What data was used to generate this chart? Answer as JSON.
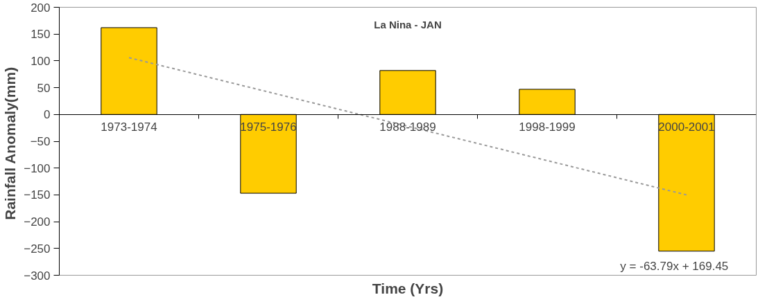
{
  "chart_data": {
    "type": "bar",
    "title": "La Nina - JAN",
    "xlabel": "Time (Yrs)",
    "ylabel": "Rainfall  Anomaly(mm)",
    "categories": [
      "1973-1974",
      "1975-1976",
      "1988-1989",
      "1998-1999",
      "2000-2001"
    ],
    "series": [
      {
        "color": "#ffcc00",
        "values": [
          162,
          -147,
          82,
          47,
          -255
        ]
      },
      {
        "type": "line",
        "color": "#999999",
        "line_style": "dashed",
        "values": [
          106,
          42,
          -22,
          -86,
          -150
        ]
      }
    ],
    "ylim": [
      -300,
      200
    ],
    "yticks": [
      -300,
      -250,
      -200,
      -150,
      -100,
      -50,
      0,
      50,
      100,
      150,
      200
    ],
    "annotations": [
      "y = -63.79x + 169.45"
    ],
    "grid": false
  }
}
